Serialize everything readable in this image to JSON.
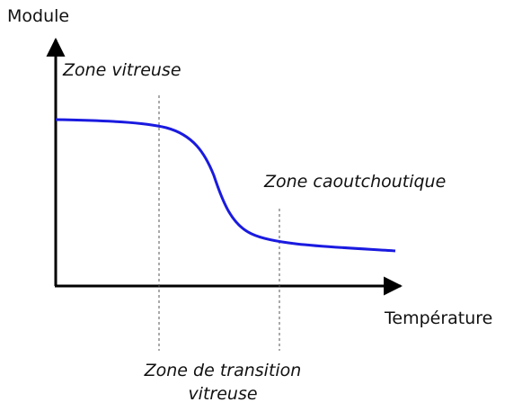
{
  "axes": {
    "y_label": "Module",
    "x_label": "Température"
  },
  "zones": {
    "glassy": "Zone vitreuse",
    "rubbery": "Zone caoutchoutique",
    "transition": [
      "Zone de transition",
      "vitreuse"
    ]
  }
}
